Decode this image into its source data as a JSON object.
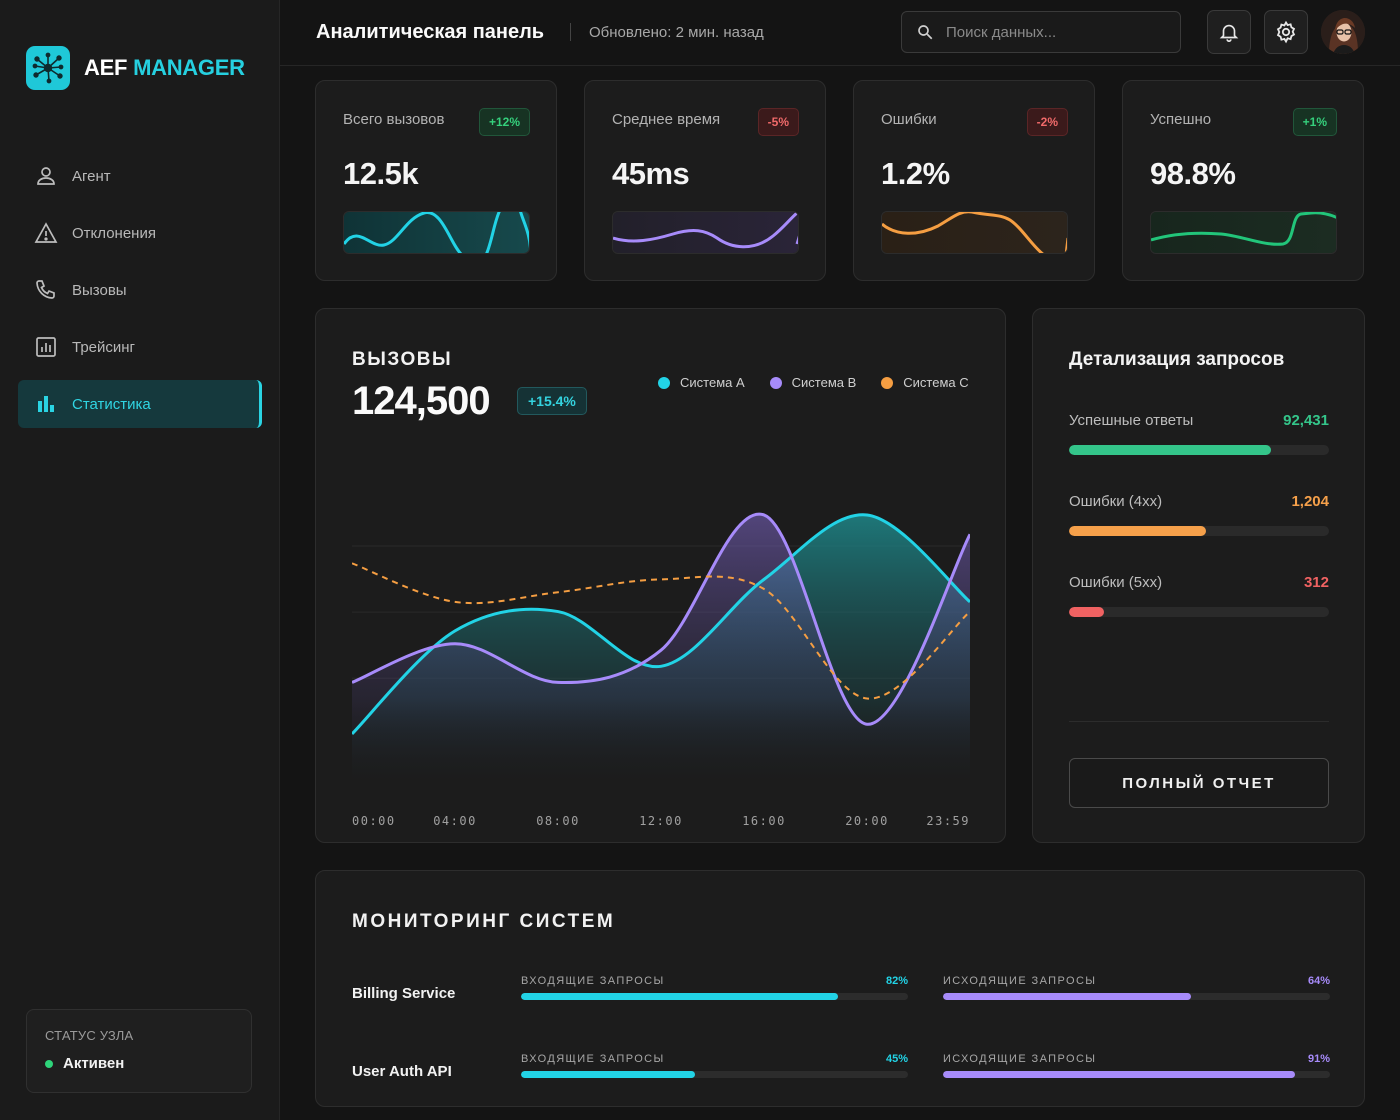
{
  "app": {
    "name_part1": "AEF",
    "name_part2": "MANAGER"
  },
  "colors": {
    "accent": "#26d0e0",
    "system_a": "#22d3e6",
    "system_b": "#a78bfa",
    "system_c": "#f59e42",
    "success": "#34d07c",
    "warning": "#f5a04a",
    "error": "#f06262"
  },
  "sidebar": {
    "items": [
      {
        "label": "Агент",
        "icon": "user-icon",
        "active": false
      },
      {
        "label": "Отклонения",
        "icon": "warning-icon",
        "active": false
      },
      {
        "label": "Вызовы",
        "icon": "phone-icon",
        "active": false
      },
      {
        "label": "Трейсинг",
        "icon": "tracing-icon",
        "active": false
      },
      {
        "label": "Статистика",
        "icon": "bar-chart-icon",
        "active": true
      }
    ],
    "node_status": {
      "label": "СТАТУС УЗЛА",
      "value": "Активен"
    }
  },
  "header": {
    "title": "Аналитическая панель",
    "updated": "Обновлено: 2 мин. назад",
    "search": {
      "placeholder": "Поиск данных...",
      "value": ""
    }
  },
  "kpis": [
    {
      "label": "Всего вызовов",
      "value": "12.5k",
      "delta": "+12%",
      "trend": "up",
      "color": "#22d3e6"
    },
    {
      "label": "Среднее время",
      "value": "45ms",
      "delta": "-5%",
      "trend": "down",
      "color": "#a78bfa"
    },
    {
      "label": "Ошибки",
      "value": "1.2%",
      "delta": "-2%",
      "trend": "down",
      "color": "#f59e42"
    },
    {
      "label": "Успешно",
      "value": "98.8%",
      "delta": "+1%",
      "trend": "up",
      "color": "#22c57a"
    }
  ],
  "calls": {
    "title": "ВЫЗОВЫ",
    "total": "124,500",
    "delta": "+15.4%",
    "legend": [
      "Система A",
      "Система B",
      "Система C"
    ]
  },
  "chart_data": {
    "type": "area",
    "categories": [
      "00:00",
      "04:00",
      "08:00",
      "12:00",
      "16:00",
      "20:00",
      "23:59"
    ],
    "series": [
      {
        "name": "Система A",
        "style": "area",
        "values": [
          14,
          46,
          52,
          35,
          62,
          82,
          55
        ]
      },
      {
        "name": "Система B",
        "style": "area",
        "values": [
          30,
          42,
          30,
          40,
          82,
          17,
          76
        ]
      },
      {
        "name": "Система C",
        "style": "dashed-line",
        "values": [
          67,
          55,
          58,
          62,
          59,
          25,
          52
        ]
      }
    ],
    "grid": true
  },
  "detail": {
    "title": "Детализация запросов",
    "rows": [
      {
        "label": "Успешные ответы",
        "value": "92,431",
        "fill_pct": 77.5,
        "color": "#34c58a"
      },
      {
        "label": "Ошибки (4xx)",
        "value": "1,204",
        "fill_pct": 52.5,
        "color": "#f5a04a"
      },
      {
        "label": "Ошибки (5xx)",
        "value": "312",
        "fill_pct": 13.5,
        "color": "#f06262"
      }
    ],
    "button": "ПОЛНЫЙ ОТЧЕТ"
  },
  "monitor": {
    "title": "МОНИТОРИНГ СИСТЕМ",
    "in_label": "ВХОДЯЩИЕ ЗАПРОСЫ",
    "out_label": "ИСХОДЯЩИЕ ЗАПРОСЫ",
    "services": [
      {
        "name": "Billing Service",
        "in_pct": "82%",
        "in_value": 82,
        "out_pct": "64%",
        "out_value": 64
      },
      {
        "name": "User Auth API",
        "in_pct": "45%",
        "in_value": 45,
        "out_pct": "91%",
        "out_value": 91
      }
    ]
  }
}
